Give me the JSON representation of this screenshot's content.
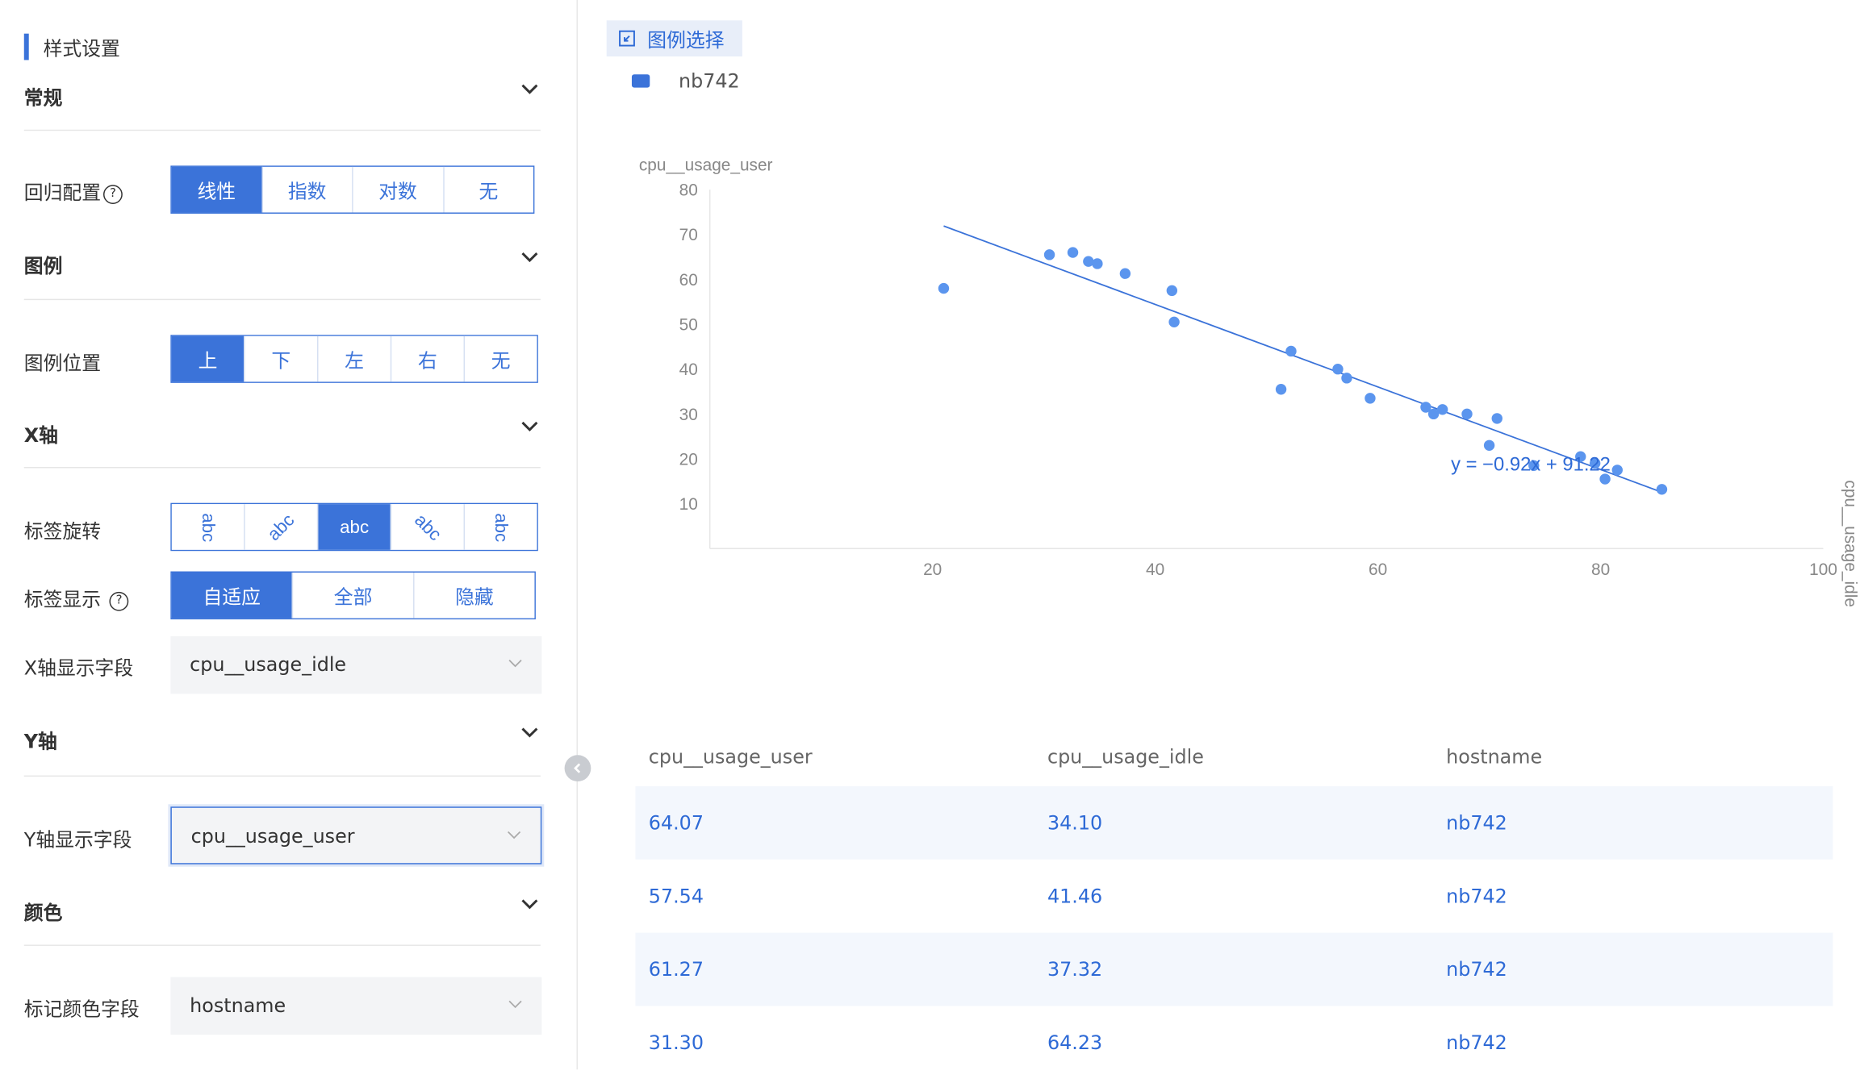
{
  "panel": {
    "title": "样式设置",
    "general": {
      "label": "常规"
    },
    "regression": {
      "label": "回归配置",
      "help": "?",
      "options": [
        "线性",
        "指数",
        "对数",
        "无"
      ],
      "selected": "线性"
    },
    "legend": {
      "label": "图例"
    },
    "legend_position": {
      "label": "图例位置",
      "options": [
        "上",
        "下",
        "左",
        "右",
        "无"
      ],
      "selected": "上"
    },
    "x_axis": {
      "label": "X轴",
      "label_rotation": {
        "label": "标签旋转",
        "options": [
          "abc",
          "abc",
          "abc",
          "abc",
          "abc"
        ],
        "selected_index": 2
      },
      "label_display": {
        "label": "标签显示",
        "help": "?",
        "options": [
          "自适应",
          "全部",
          "隐藏"
        ],
        "selected": "自适应"
      },
      "field": {
        "label": "X轴显示字段",
        "value": "cpu__usage_idle"
      }
    },
    "y_axis": {
      "label": "Y轴",
      "field": {
        "label": "Y轴显示字段",
        "value": "cpu__usage_user"
      }
    },
    "color": {
      "label": "颜色",
      "field": {
        "label": "标记颜色字段",
        "value": "hostname"
      }
    }
  },
  "legend_select": {
    "label": "图例选择",
    "icon": "legend-select-icon"
  },
  "legend_items": [
    {
      "name": "nb742",
      "color": "#3b73d9"
    }
  ],
  "chart_data": {
    "type": "scatter",
    "ylabel": "cpu__usage_user",
    "xlabel": "cpu__usage_idle",
    "xlim": [
      0,
      100
    ],
    "ylim": [
      0,
      80
    ],
    "x_ticks": [
      20,
      40,
      60,
      80,
      100
    ],
    "y_ticks": [
      10,
      20,
      30,
      40,
      50,
      60,
      70,
      80
    ],
    "series": [
      {
        "name": "nb742",
        "color": "#5b95ee",
        "points": [
          [
            21.0,
            58.0
          ],
          [
            30.5,
            65.5
          ],
          [
            32.6,
            66.0
          ],
          [
            34.0,
            64.0
          ],
          [
            34.8,
            63.5
          ],
          [
            37.3,
            61.3
          ],
          [
            41.5,
            57.5
          ],
          [
            41.7,
            50.5
          ],
          [
            51.3,
            35.5
          ],
          [
            52.2,
            44.0
          ],
          [
            56.4,
            40.0
          ],
          [
            57.2,
            38.0
          ],
          [
            59.3,
            33.5
          ],
          [
            64.3,
            31.5
          ],
          [
            65.0,
            30.0
          ],
          [
            65.8,
            31.0
          ],
          [
            68.0,
            30.0
          ],
          [
            70.0,
            23.0
          ],
          [
            70.7,
            29.0
          ],
          [
            74.0,
            18.5
          ],
          [
            78.2,
            20.5
          ],
          [
            79.5,
            19.0
          ],
          [
            80.4,
            15.5
          ],
          [
            81.5,
            17.5
          ],
          [
            85.5,
            13.2
          ]
        ]
      }
    ],
    "regression": {
      "type": "linear",
      "slope": -0.92,
      "intercept": 91.22,
      "label": "y = −0.92x + 91.22",
      "x_range": [
        21,
        85.5
      ]
    }
  },
  "table": {
    "headers": [
      "cpu__usage_user",
      "cpu__usage_idle",
      "hostname"
    ],
    "rows": [
      [
        "64.07",
        "34.10",
        "nb742"
      ],
      [
        "57.54",
        "41.46",
        "nb742"
      ],
      [
        "61.27",
        "37.32",
        "nb742"
      ],
      [
        "31.30",
        "64.23",
        "nb742"
      ]
    ]
  }
}
